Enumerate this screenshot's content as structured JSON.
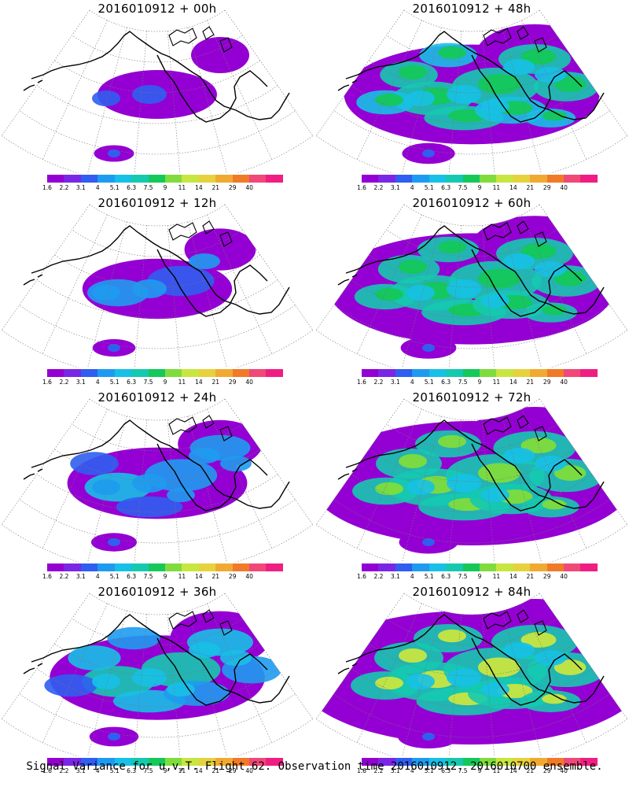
{
  "panels": [
    {
      "title": "2016010912 + 00h",
      "intensity": 0.5
    },
    {
      "title": "2016010912 + 48h",
      "intensity": 3.2
    },
    {
      "title": "2016010912 + 12h",
      "intensity": 1.1
    },
    {
      "title": "2016010912 + 60h",
      "intensity": 3.8
    },
    {
      "title": "2016010912 + 24h",
      "intensity": 1.7
    },
    {
      "title": "2016010912 + 72h",
      "intensity": 4.5
    },
    {
      "title": "2016010912 + 36h",
      "intensity": 2.4
    },
    {
      "title": "2016010912 + 84h",
      "intensity": 5.0
    }
  ],
  "colorbar": {
    "labels": [
      "1.6",
      "2.2",
      "3.1",
      "4",
      "5.1",
      "6.3",
      "7.5",
      "9",
      "11",
      "14",
      "21",
      "29",
      "40"
    ],
    "colors": [
      "#9400d3",
      "#7b26e6",
      "#2f5ef0",
      "#1e9bf0",
      "#17c0e6",
      "#15c9b0",
      "#14c85a",
      "#7fdc3c",
      "#c8e640",
      "#e6d23c",
      "#f0aa32",
      "#f07a28",
      "#f04878",
      "#f01e82"
    ]
  },
  "footer": "Signal Variance for u,v,T. Flight 62. Observation time 2016010912. 2016010700 ensemble."
}
